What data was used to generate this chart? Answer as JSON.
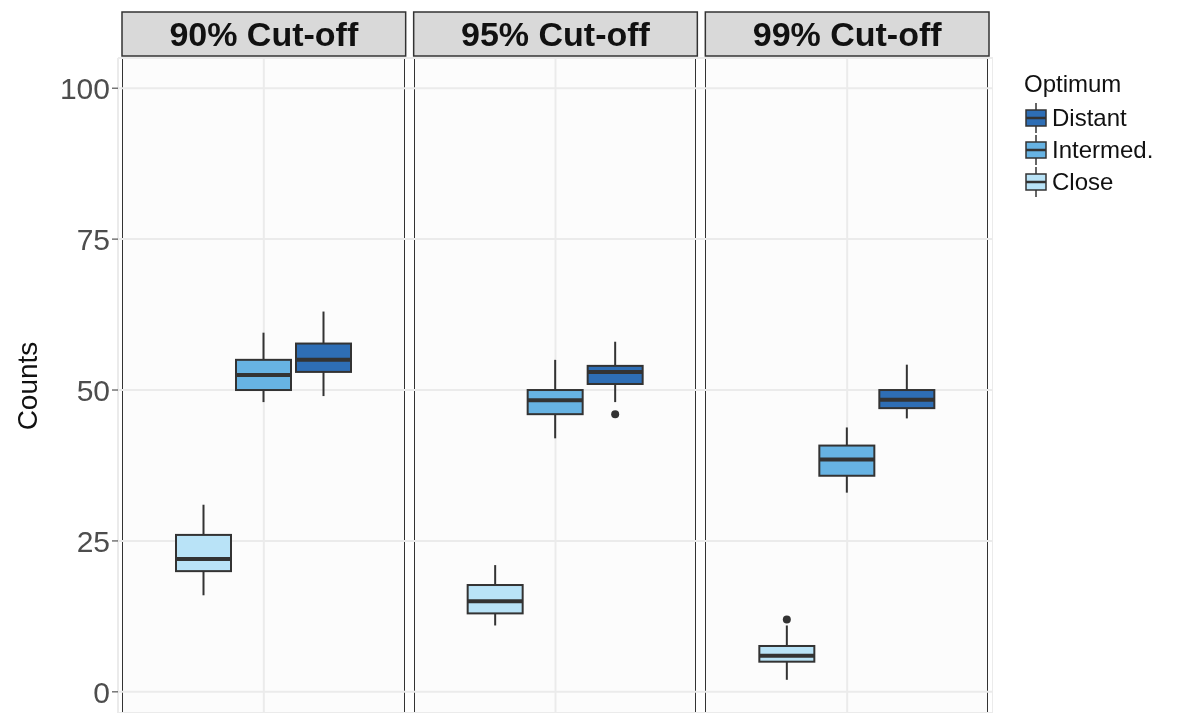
{
  "chart_data": {
    "type": "box",
    "categories": [
      "90% Cut-off",
      "95% Cut-off",
      "99% Cut-off"
    ],
    "ylabel": "Counts",
    "ylim": [
      -3.5,
      105
    ],
    "yticks": [
      0,
      25,
      50,
      75,
      100
    ],
    "grid": true,
    "legend": "right",
    "legend_title": "Optimum",
    "series": [
      {
        "name": "Close",
        "color": "#b9e3f7",
        "boxes": [
          {
            "low": 16,
            "q1": 20,
            "median": 22,
            "q3": 26,
            "high": 31
          },
          {
            "low": 11,
            "q1": 13,
            "median": 15,
            "q3": 17.7,
            "high": 21
          },
          {
            "low": 2,
            "q1": 5,
            "median": 6,
            "q3": 7.6,
            "high": 11,
            "outliers": [
              12
            ]
          }
        ]
      },
      {
        "name": "Intermed.",
        "color": "#67b3e3",
        "boxes": [
          {
            "low": 48,
            "q1": 50,
            "median": 52.5,
            "q3": 55,
            "high": 59.5
          },
          {
            "low": 42,
            "q1": 46,
            "median": 48.3,
            "q3": 50,
            "high": 55
          },
          {
            "low": 33,
            "q1": 35.8,
            "median": 38.5,
            "q3": 40.8,
            "high": 43.8
          }
        ]
      },
      {
        "name": "Distant",
        "color": "#2e6eb5",
        "boxes": [
          {
            "low": 49,
            "q1": 53,
            "median": 55,
            "q3": 57.7,
            "high": 63
          },
          {
            "low": 48,
            "q1": 51,
            "median": 53,
            "q3": 54,
            "high": 58,
            "outliers": [
              46
            ]
          },
          {
            "low": 45.3,
            "q1": 47,
            "median": 48.4,
            "q3": 50,
            "high": 54.2
          }
        ]
      }
    ]
  }
}
